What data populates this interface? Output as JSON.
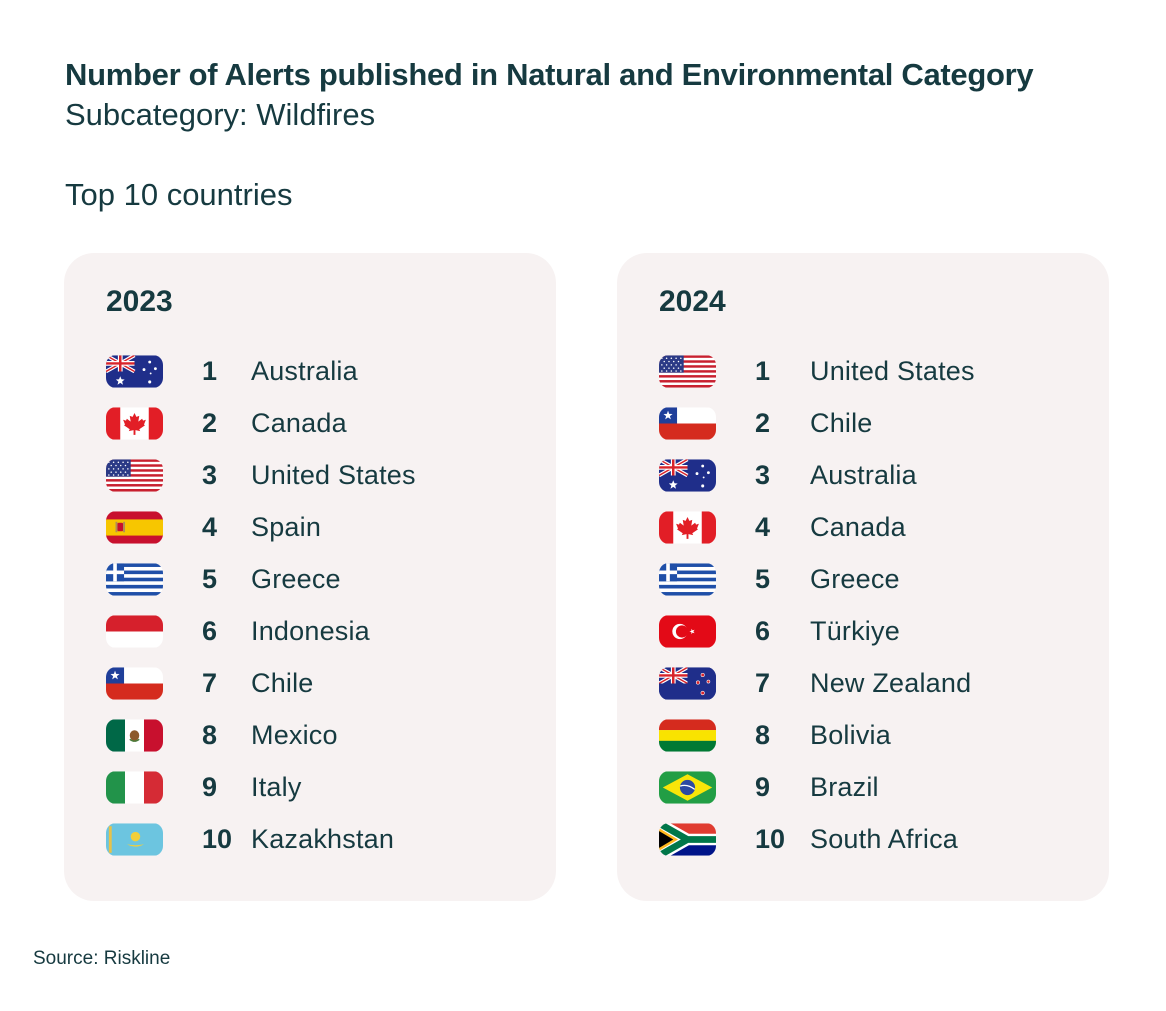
{
  "header": {
    "title": "Number of Alerts published in Natural and Environmental Category",
    "subtitle": "Subcategory: Wildfires",
    "lead": "Top 10 countries"
  },
  "colors": {
    "text": "#163a40",
    "card_background": "#f7f2f2"
  },
  "tables": [
    {
      "year": "2023",
      "rows": [
        {
          "rank": "1",
          "country": "Australia",
          "flag_icon": "australia-flag-icon"
        },
        {
          "rank": "2",
          "country": "Canada",
          "flag_icon": "canada-flag-icon"
        },
        {
          "rank": "3",
          "country": "United States",
          "flag_icon": "united-states-flag-icon"
        },
        {
          "rank": "4",
          "country": "Spain",
          "flag_icon": "spain-flag-icon"
        },
        {
          "rank": "5",
          "country": "Greece",
          "flag_icon": "greece-flag-icon"
        },
        {
          "rank": "6",
          "country": "Indonesia",
          "flag_icon": "indonesia-flag-icon"
        },
        {
          "rank": "7",
          "country": "Chile",
          "flag_icon": "chile-flag-icon"
        },
        {
          "rank": "8",
          "country": "Mexico",
          "flag_icon": "mexico-flag-icon"
        },
        {
          "rank": "9",
          "country": "Italy",
          "flag_icon": "italy-flag-icon"
        },
        {
          "rank": "10",
          "country": "Kazakhstan",
          "flag_icon": "kazakhstan-flag-icon"
        }
      ]
    },
    {
      "year": "2024",
      "rows": [
        {
          "rank": "1",
          "country": "United States",
          "flag_icon": "united-states-flag-icon"
        },
        {
          "rank": "2",
          "country": "Chile",
          "flag_icon": "chile-flag-icon"
        },
        {
          "rank": "3",
          "country": "Australia",
          "flag_icon": "australia-flag-icon"
        },
        {
          "rank": "4",
          "country": "Canada",
          "flag_icon": "canada-flag-icon"
        },
        {
          "rank": "5",
          "country": "Greece",
          "flag_icon": "greece-flag-icon"
        },
        {
          "rank": "6",
          "country": "Türkiye",
          "flag_icon": "turkiye-flag-icon"
        },
        {
          "rank": "7",
          "country": "New Zealand",
          "flag_icon": "new-zealand-flag-icon"
        },
        {
          "rank": "8",
          "country": "Bolivia",
          "flag_icon": "bolivia-flag-icon"
        },
        {
          "rank": "9",
          "country": "Brazil",
          "flag_icon": "brazil-flag-icon"
        },
        {
          "rank": "10",
          "country": "South Africa",
          "flag_icon": "south-africa-flag-icon"
        }
      ]
    }
  ],
  "footer": {
    "source": "Source: Riskline"
  }
}
